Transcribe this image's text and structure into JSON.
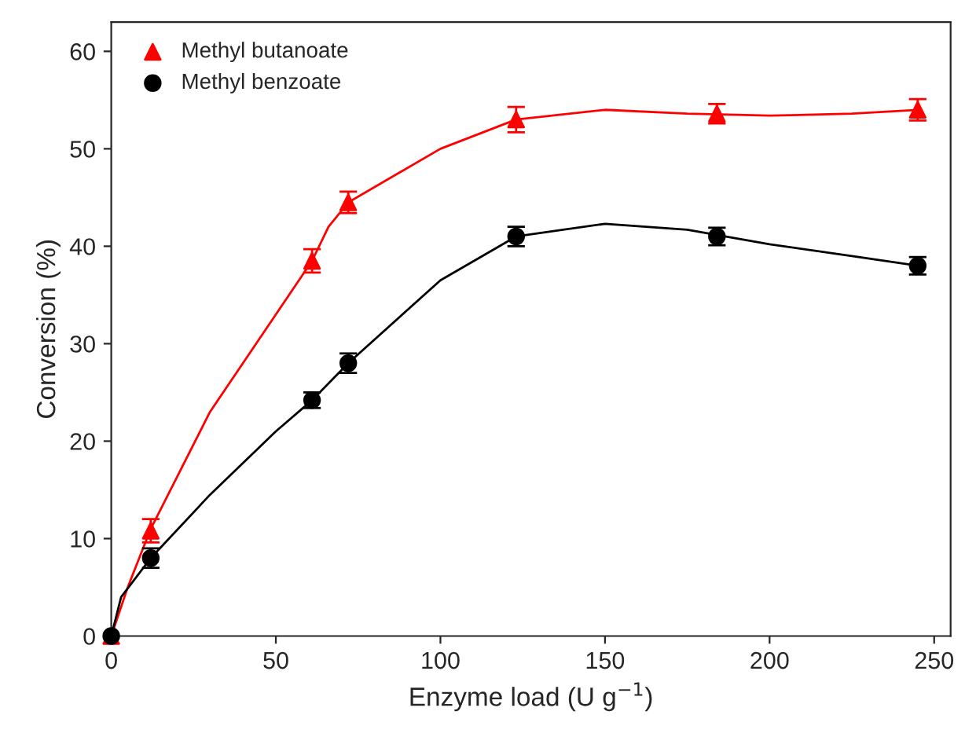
{
  "chart_data": {
    "type": "scatter",
    "xlabel": "Enzyme load (U g$^{−1}$)",
    "ylabel": "Conversion (%)",
    "xlim": [
      0,
      255
    ],
    "ylim": [
      0,
      63
    ],
    "xticks": [
      0,
      50,
      100,
      150,
      200,
      250
    ],
    "yticks": [
      0,
      10,
      20,
      30,
      40,
      50,
      60
    ],
    "grid": false,
    "legend": "top left",
    "series": [
      {
        "name": "Methyl butanoate",
        "marker": "triangle",
        "color": "#ff0000",
        "x": [
          0,
          12,
          61,
          72,
          123,
          184,
          245
        ],
        "values": [
          0,
          10.8,
          38.5,
          44.5,
          53,
          53.6,
          54
        ],
        "errors": [
          null,
          1.2,
          1.2,
          1.1,
          1.3,
          1.0,
          1.1
        ]
      },
      {
        "name": "Methyl benzoate",
        "marker": "circle",
        "color": "#000000",
        "x": [
          0,
          12,
          61,
          72,
          123,
          184,
          245
        ],
        "values": [
          0,
          8,
          24.2,
          28,
          41,
          41,
          38
        ],
        "errors": [
          null,
          1.0,
          0.8,
          1.0,
          1.0,
          0.9,
          0.9
        ]
      },
      {
        "type": "line",
        "color": "#ff0000",
        "x": [
          0,
          5,
          12,
          30,
          50,
          61,
          66,
          72,
          100,
          123,
          150,
          175,
          200,
          225,
          245
        ],
        "values": [
          0,
          5,
          11,
          23,
          33,
          38.5,
          42,
          44.5,
          50,
          53,
          54,
          53.6,
          53.4,
          53.6,
          54
        ]
      },
      {
        "type": "line",
        "color": "#000000",
        "x": [
          0,
          3,
          12,
          30,
          50,
          61,
          72,
          100,
          123,
          150,
          175,
          200,
          225,
          245
        ],
        "values": [
          0,
          4,
          8,
          14.5,
          21,
          24.2,
          28,
          36.5,
          41,
          42.3,
          41.7,
          40.2,
          39,
          38
        ]
      }
    ]
  }
}
